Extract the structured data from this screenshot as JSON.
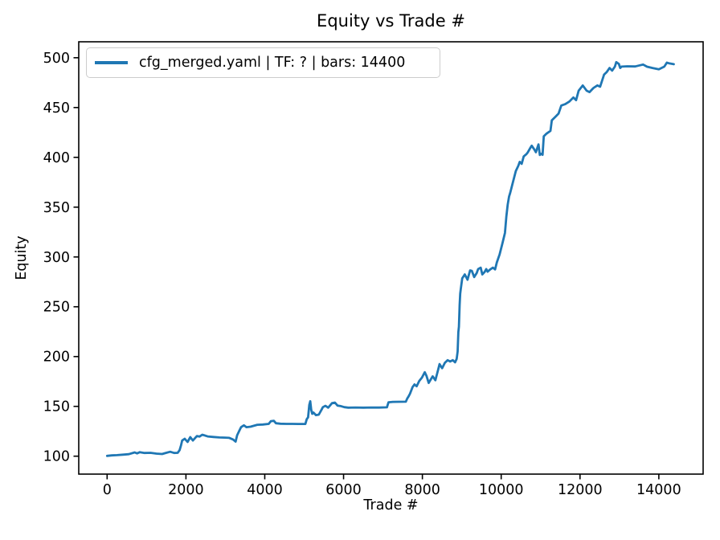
{
  "chart_data": {
    "type": "line",
    "title": "Equity vs Trade #",
    "xlabel": "Trade #",
    "ylabel": "Equity",
    "grid": false,
    "legend": {
      "position": "upper left",
      "entries": [
        {
          "label": "cfg_merged.yaml | TF: ? | bars: 14400",
          "color": "#1f77b4"
        }
      ]
    },
    "colors": {
      "line": "#1f77b4",
      "axis": "#000000",
      "legend_border": "#cccccc",
      "background": "#ffffff"
    },
    "x_ticks": [
      0,
      2000,
      4000,
      6000,
      8000,
      10000,
      12000,
      14000
    ],
    "y_ticks": [
      100,
      150,
      200,
      250,
      300,
      350,
      400,
      450,
      500
    ],
    "xlim": [
      -720,
      15124
    ],
    "ylim": [
      82,
      516
    ],
    "series": [
      {
        "name": "cfg_merged.yaml | TF: ? | bars: 14400",
        "points": [
          [
            0,
            100.3
          ],
          [
            120,
            100.8
          ],
          [
            250,
            101.0
          ],
          [
            400,
            101.5
          ],
          [
            550,
            102.0
          ],
          [
            700,
            103.8
          ],
          [
            760,
            102.8
          ],
          [
            830,
            104.0
          ],
          [
            950,
            103.2
          ],
          [
            1100,
            103.4
          ],
          [
            1250,
            102.6
          ],
          [
            1395,
            102.2
          ],
          [
            1500,
            103.4
          ],
          [
            1600,
            104.4
          ],
          [
            1700,
            103.2
          ],
          [
            1790,
            103.4
          ],
          [
            1840,
            106.0
          ],
          [
            1875,
            111.0
          ],
          [
            1905,
            115.7
          ],
          [
            1970,
            117.5
          ],
          [
            2040,
            114.3
          ],
          [
            2110,
            119.1
          ],
          [
            2175,
            115.7
          ],
          [
            2280,
            120.2
          ],
          [
            2345,
            119.7
          ],
          [
            2415,
            121.5
          ],
          [
            2480,
            120.8
          ],
          [
            2550,
            119.8
          ],
          [
            2700,
            119.3
          ],
          [
            2850,
            118.8
          ],
          [
            3000,
            118.6
          ],
          [
            3100,
            118.4
          ],
          [
            3195,
            116.8
          ],
          [
            3260,
            114.6
          ],
          [
            3300,
            121.0
          ],
          [
            3365,
            126.4
          ],
          [
            3400,
            129.1
          ],
          [
            3470,
            131.0
          ],
          [
            3535,
            129.1
          ],
          [
            3640,
            129.6
          ],
          [
            3810,
            131.5
          ],
          [
            3950,
            131.8
          ],
          [
            4100,
            132.4
          ],
          [
            4155,
            135.2
          ],
          [
            4230,
            135.5
          ],
          [
            4285,
            133.1
          ],
          [
            4400,
            132.6
          ],
          [
            4550,
            132.4
          ],
          [
            4700,
            132.4
          ],
          [
            4850,
            132.3
          ],
          [
            5030,
            132.3
          ],
          [
            5065,
            137.1
          ],
          [
            5100,
            139.0
          ],
          [
            5130,
            151.5
          ],
          [
            5155,
            155.2
          ],
          [
            5180,
            146.6
          ],
          [
            5205,
            142.5
          ],
          [
            5235,
            143.9
          ],
          [
            5300,
            141.2
          ],
          [
            5370,
            141.7
          ],
          [
            5440,
            146.6
          ],
          [
            5475,
            149.2
          ],
          [
            5540,
            150.6
          ],
          [
            5610,
            148.7
          ],
          [
            5710,
            153.3
          ],
          [
            5780,
            153.8
          ],
          [
            5845,
            150.8
          ],
          [
            5915,
            150.4
          ],
          [
            6020,
            149.2
          ],
          [
            6120,
            148.7
          ],
          [
            6300,
            148.9
          ],
          [
            6500,
            148.7
          ],
          [
            6700,
            148.9
          ],
          [
            6900,
            148.8
          ],
          [
            7100,
            149.0
          ],
          [
            7140,
            154.1
          ],
          [
            7250,
            154.5
          ],
          [
            7400,
            154.6
          ],
          [
            7580,
            154.7
          ],
          [
            7615,
            157.9
          ],
          [
            7650,
            160.1
          ],
          [
            7685,
            162.7
          ],
          [
            7750,
            169.4
          ],
          [
            7800,
            172.0
          ],
          [
            7855,
            170.2
          ],
          [
            7920,
            175.5
          ],
          [
            7990,
            178.9
          ],
          [
            8060,
            184.3
          ],
          [
            8105,
            180.5
          ],
          [
            8160,
            173.5
          ],
          [
            8260,
            180.2
          ],
          [
            8330,
            176.2
          ],
          [
            8400,
            187.0
          ],
          [
            8435,
            192.4
          ],
          [
            8500,
            188.3
          ],
          [
            8570,
            193.7
          ],
          [
            8640,
            196.4
          ],
          [
            8705,
            195.0
          ],
          [
            8770,
            196.4
          ],
          [
            8830,
            194.2
          ],
          [
            8870,
            197.7
          ],
          [
            8895,
            205.0
          ],
          [
            8912,
            224.7
          ],
          [
            8928,
            230.0
          ],
          [
            8945,
            252.0
          ],
          [
            8960,
            263.0
          ],
          [
            8975,
            267.7
          ],
          [
            9010,
            278.5
          ],
          [
            9075,
            282.5
          ],
          [
            9145,
            277.1
          ],
          [
            9210,
            286.5
          ],
          [
            9255,
            286.0
          ],
          [
            9315,
            279.8
          ],
          [
            9380,
            284.0
          ],
          [
            9415,
            287.9
          ],
          [
            9480,
            289.2
          ],
          [
            9520,
            282.5
          ],
          [
            9580,
            285.0
          ],
          [
            9620,
            287.9
          ],
          [
            9655,
            285.2
          ],
          [
            9720,
            287.5
          ],
          [
            9790,
            289.2
          ],
          [
            9845,
            287.5
          ],
          [
            9890,
            294.6
          ],
          [
            9960,
            302.7
          ],
          [
            10030,
            313.5
          ],
          [
            10095,
            324.2
          ],
          [
            10130,
            340.4
          ],
          [
            10165,
            352.5
          ],
          [
            10200,
            360.6
          ],
          [
            10230,
            364.6
          ],
          [
            10300,
            375.3
          ],
          [
            10370,
            386.2
          ],
          [
            10435,
            391.5
          ],
          [
            10470,
            395.5
          ],
          [
            10520,
            393.5
          ],
          [
            10570,
            400.9
          ],
          [
            10640,
            403.2
          ],
          [
            10675,
            405.0
          ],
          [
            10740,
            409.5
          ],
          [
            10775,
            411.7
          ],
          [
            10845,
            407.6
          ],
          [
            10880,
            405.2
          ],
          [
            10945,
            413.0
          ],
          [
            10980,
            402.3
          ],
          [
            11015,
            403.6
          ],
          [
            11050,
            402.6
          ],
          [
            11080,
            421.1
          ],
          [
            11150,
            423.8
          ],
          [
            11250,
            426.5
          ],
          [
            11285,
            437.2
          ],
          [
            11390,
            441.3
          ],
          [
            11455,
            444.0
          ],
          [
            11525,
            452.0
          ],
          [
            11625,
            453.4
          ],
          [
            11730,
            456.1
          ],
          [
            11830,
            460.1
          ],
          [
            11900,
            457.4
          ],
          [
            11965,
            466.9
          ],
          [
            12070,
            472.2
          ],
          [
            12170,
            466.9
          ],
          [
            12240,
            465.5
          ],
          [
            12340,
            469.6
          ],
          [
            12440,
            472.2
          ],
          [
            12510,
            470.9
          ],
          [
            12610,
            483.0
          ],
          [
            12680,
            485.7
          ],
          [
            12750,
            489.7
          ],
          [
            12815,
            487.0
          ],
          [
            12885,
            491.1
          ],
          [
            12920,
            495.6
          ],
          [
            12985,
            493.8
          ],
          [
            13020,
            489.7
          ],
          [
            13055,
            491.1
          ],
          [
            13200,
            491.4
          ],
          [
            13400,
            491.2
          ],
          [
            13600,
            493.2
          ],
          [
            13700,
            491.0
          ],
          [
            13840,
            489.7
          ],
          [
            14000,
            488.4
          ],
          [
            14140,
            491.1
          ],
          [
            14205,
            495.1
          ],
          [
            14270,
            494.3
          ],
          [
            14380,
            493.5
          ]
        ]
      }
    ]
  }
}
